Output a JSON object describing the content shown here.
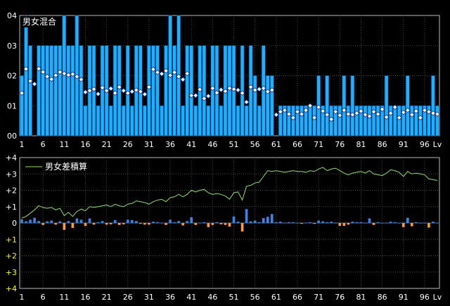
{
  "chart_data": [
    {
      "type": "bar",
      "title": "男女混合",
      "xlabel": "Lv",
      "ylim": [
        0,
        4
      ],
      "yticks": [
        "00",
        "01",
        "02",
        "03",
        "04"
      ],
      "xticks": [
        "1",
        "6",
        "11",
        "16",
        "21",
        "26",
        "31",
        "36",
        "41",
        "46",
        "51",
        "56",
        "61",
        "66",
        "71",
        "76",
        "81",
        "86",
        "91",
        "96",
        "Lv"
      ],
      "x": [
        1,
        2,
        3,
        4,
        5,
        6,
        7,
        8,
        9,
        10,
        11,
        12,
        13,
        14,
        15,
        16,
        17,
        18,
        19,
        20,
        21,
        22,
        23,
        24,
        25,
        26,
        27,
        28,
        29,
        30,
        31,
        32,
        33,
        34,
        35,
        36,
        37,
        38,
        39,
        40,
        41,
        42,
        43,
        44,
        45,
        46,
        47,
        48,
        49,
        50,
        51,
        52,
        53,
        54,
        55,
        56,
        57,
        58,
        59,
        60,
        61,
        62,
        63,
        64,
        65,
        66,
        67,
        68,
        69,
        70,
        71,
        72,
        73,
        74,
        75,
        76,
        77,
        78,
        79,
        80,
        81,
        82,
        83,
        84,
        85,
        86,
        87,
        88,
        89,
        90,
        91,
        92,
        93,
        94,
        95,
        96,
        97,
        98,
        99
      ],
      "series": [
        {
          "type": "bar",
          "values": [
            2,
            4,
            3,
            0,
            3,
            3,
            3,
            3,
            3,
            3,
            4,
            3,
            3,
            4,
            3,
            1,
            3,
            3,
            1,
            3,
            3,
            1,
            3,
            3,
            1,
            3,
            1,
            3,
            3,
            1,
            3,
            3,
            3,
            1,
            3,
            4,
            3,
            4,
            1,
            3,
            3,
            1,
            3,
            3,
            1,
            3,
            3,
            1,
            3,
            3,
            3,
            1,
            3,
            1,
            3,
            2,
            1,
            3,
            2,
            2,
            0,
            1,
            1,
            1,
            1,
            1,
            1,
            1,
            1,
            1,
            2,
            1,
            2,
            1,
            1,
            1,
            2,
            1,
            2,
            1,
            1,
            1,
            1,
            1,
            1,
            1,
            2,
            1,
            1,
            1,
            1,
            2,
            1,
            1,
            1,
            1,
            1,
            2,
            1
          ]
        },
        {
          "type": "scatter",
          "values": [
            1.42,
            2.22,
            1.82,
            1.72,
            2.23,
            2.12,
            1.97,
            1.88,
            2.01,
            2.12,
            2.07,
            2.02,
            2.05,
            1.97,
            1.87,
            1.45,
            1.5,
            1.55,
            1.39,
            1.6,
            1.5,
            1.57,
            1.42,
            1.62,
            1.5,
            1.42,
            1.47,
            1.52,
            1.47,
            1.38,
            1.62,
            2.21,
            2.11,
            2.06,
            2.16,
            2.01,
            2.11,
            1.97,
            1.87,
            2.07,
            1.34,
            1.34,
            1.54,
            1.24,
            1.32,
            1.58,
            1.43,
            1.53,
            1.48,
            1.58,
            1.55,
            1.52,
            1.42,
            1.12,
            1.62,
            1.52,
            1.55,
            1.58,
            1.47,
            1.52,
            0.7,
            0.8,
            0.85,
            0.72,
            0.6,
            0.8,
            0.72,
            0.85,
            1.0,
            0.6,
            0.95,
            0.82,
            0.7,
            0.55,
            0.8,
            0.68,
            0.85,
            0.72,
            0.7,
            0.75,
            0.82,
            0.7,
            0.65,
            0.8,
            0.72,
            0.88,
            0.62,
            0.75,
            0.95,
            0.6,
            0.78,
            0.85,
            0.7,
            0.82,
            0.6,
            0.85,
            0.8,
            0.75,
            0.72
          ]
        }
      ]
    },
    {
      "type": "bar",
      "ylim": [
        -4,
        4
      ],
      "yticks": [
        "+4",
        "+3",
        "+2",
        "+1",
        "0",
        "+1",
        "+2",
        "+3",
        "+4"
      ],
      "xticks": [
        "1",
        "6",
        "11",
        "16",
        "21",
        "26",
        "31",
        "36",
        "41",
        "46",
        "51",
        "56",
        "61",
        "66",
        "71",
        "76",
        "81",
        "86",
        "91",
        "96",
        "Lv"
      ],
      "xlabel": "Lv",
      "x": [
        1,
        2,
        3,
        4,
        5,
        6,
        7,
        8,
        9,
        10,
        11,
        12,
        13,
        14,
        15,
        16,
        17,
        18,
        19,
        20,
        21,
        22,
        23,
        24,
        25,
        26,
        27,
        28,
        29,
        30,
        31,
        32,
        33,
        34,
        35,
        36,
        37,
        38,
        39,
        40,
        41,
        42,
        43,
        44,
        45,
        46,
        47,
        48,
        49,
        50,
        51,
        52,
        53,
        54,
        55,
        56,
        57,
        58,
        59,
        60,
        61,
        62,
        63,
        64,
        65,
        66,
        67,
        68,
        69,
        70,
        71,
        72,
        73,
        74,
        75,
        76,
        77,
        78,
        79,
        80,
        81,
        82,
        83,
        84,
        85,
        86,
        87,
        88,
        89,
        90,
        91,
        92,
        93,
        94,
        95,
        96,
        97,
        98,
        99
      ],
      "series": [
        {
          "type": "bar",
          "values": [
            0.22,
            0.1,
            0.2,
            0.32,
            0.12,
            -0.12,
            0.1,
            0.15,
            -0.1,
            0.1,
            -0.42,
            0.12,
            -0.3,
            0.28,
            0.2,
            -0.18,
            0.28,
            -0.1,
            0.05,
            0.12,
            -0.1,
            -0.08,
            0.18,
            -0.12,
            -0.08,
            0.2,
            0.18,
            0.12,
            -0.05,
            -0.1,
            -0.1,
            0.08,
            0.05,
            0.02,
            -0.12,
            0.2,
            0.05,
            0.12,
            -0.15,
            0.12,
            0.35,
            -0.12,
            0.02,
            0.05,
            -0.25,
            -0.12,
            0.05,
            -0.08,
            -0.12,
            -0.22,
            0.4,
            0.08,
            -0.52,
            0.85,
            0.1,
            0.15,
            0.05,
            0.3,
            0.38,
            0.55,
            0.05,
            0.08,
            0.02,
            0.05,
            0.05,
            0.02,
            -0.05,
            0.02,
            0.05,
            -0.05,
            0.15,
            0.1,
            0.05,
            0.08,
            0.02,
            -0.18,
            -0.18,
            -0.1,
            0.08,
            0.05,
            0.05,
            0.02,
            0.28,
            -0.12,
            0.05,
            0.02,
            0.02,
            0.08,
            0.05,
            0.02,
            -0.25,
            0.32,
            -0.2,
            0.05,
            0.02,
            0.02,
            -0.28,
            0.08,
            0.02
          ]
        },
        {
          "type": "line",
          "name": "男女差積算",
          "values": [
            0.3,
            0.4,
            0.6,
            0.8,
            1.05,
            0.95,
            0.9,
            0.95,
            0.8,
            0.9,
            0.45,
            0.65,
            0.4,
            0.7,
            0.85,
            0.75,
            1.0,
            0.95,
            1.0,
            1.05,
            1.1,
            1.0,
            1.15,
            1.05,
            1.0,
            1.15,
            1.2,
            1.35,
            1.3,
            1.25,
            1.15,
            1.3,
            1.4,
            1.45,
            1.3,
            1.55,
            1.6,
            1.75,
            1.6,
            1.75,
            2.0,
            1.9,
            2.0,
            2.05,
            1.85,
            1.75,
            1.8,
            1.75,
            1.65,
            1.45,
            1.85,
            1.9,
            1.4,
            2.25,
            2.3,
            2.45,
            2.5,
            2.85,
            3.2,
            3.15,
            3.2,
            3.15,
            3.1,
            3.15,
            3.2,
            3.15,
            3.15,
            3.1,
            3.2,
            3.15,
            3.3,
            3.4,
            3.2,
            3.3,
            3.35,
            3.2,
            3.05,
            2.95,
            3.05,
            3.1,
            3.15,
            3.05,
            3.2,
            3.0,
            2.95,
            2.9,
            3.05,
            3.25,
            3.2,
            3.1,
            2.85,
            3.15,
            3.0,
            3.05,
            3.0,
            2.95,
            2.7,
            2.65,
            2.6
          ]
        }
      ]
    }
  ]
}
